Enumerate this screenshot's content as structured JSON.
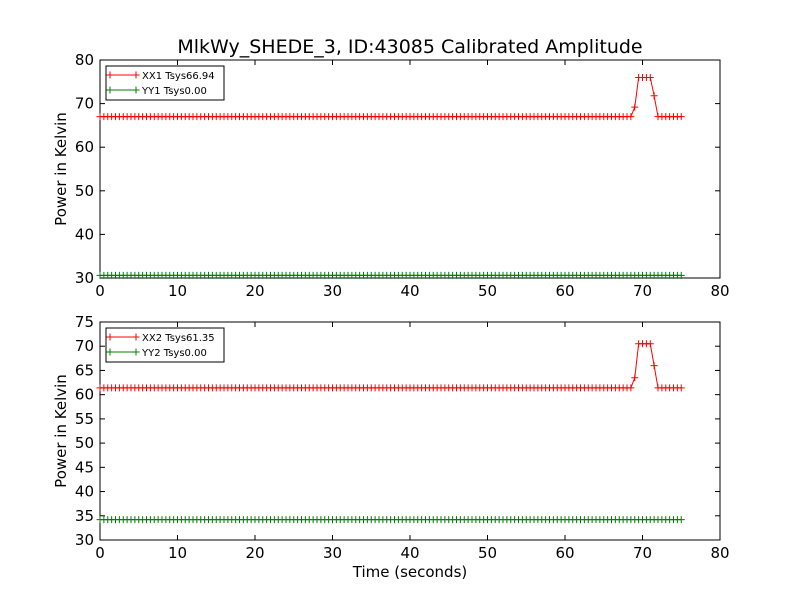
{
  "title": "MlkWy_SHEDE_3, ID:43085 Calibrated Amplitude",
  "xlabel": "Time (seconds)",
  "colors": {
    "xx": "#ff0000",
    "yy": "#008000",
    "axes": "#000000",
    "background": "#ffffff"
  },
  "chart_data": [
    {
      "type": "line",
      "ylabel": "Power in Kelvin",
      "xlim": [
        0,
        80
      ],
      "ylim": [
        30,
        80
      ],
      "xticks": [
        0,
        10,
        20,
        30,
        40,
        50,
        60,
        70,
        80
      ],
      "yticks": [
        30,
        40,
        50,
        60,
        70,
        80
      ],
      "xtick_labels": [
        "0",
        "10",
        "20",
        "30",
        "40",
        "50",
        "60",
        "70",
        "80"
      ],
      "ytick_labels": [
        "30",
        "40",
        "50",
        "60",
        "70",
        "80"
      ],
      "grid": false,
      "legend_position": "top-left",
      "marker": "+",
      "series": [
        {
          "name": "XX1 Tsys66.94",
          "color": "#ff0000",
          "x_start": 0,
          "x_end": 75,
          "step": 0.5,
          "baseline": 67.0,
          "overrides": [
            [
              69,
              69.2
            ],
            [
              69.5,
              76.0
            ],
            [
              70,
              76.0
            ],
            [
              70.5,
              76.0
            ],
            [
              71,
              76.0
            ],
            [
              71.5,
              71.8
            ],
            [
              72,
              67.0
            ]
          ]
        },
        {
          "name": "YY1 Tsys0.00",
          "color": "#008000",
          "x_start": 0,
          "x_end": 75,
          "step": 0.5,
          "baseline": 30.6,
          "overrides": []
        }
      ]
    },
    {
      "type": "line",
      "ylabel": "Power in Kelvin",
      "xlim": [
        0,
        80
      ],
      "ylim": [
        30,
        75
      ],
      "xticks": [
        0,
        10,
        20,
        30,
        40,
        50,
        60,
        70,
        80
      ],
      "yticks": [
        30,
        35,
        40,
        45,
        50,
        55,
        60,
        65,
        70,
        75
      ],
      "xtick_labels": [
        "0",
        "10",
        "20",
        "30",
        "40",
        "50",
        "60",
        "70",
        "80"
      ],
      "ytick_labels": [
        "30",
        "35",
        "40",
        "45",
        "50",
        "55",
        "60",
        "65",
        "70",
        "75"
      ],
      "grid": false,
      "legend_position": "top-left",
      "marker": "+",
      "series": [
        {
          "name": "XX2 Tsys61.35",
          "color": "#ff0000",
          "x_start": 0,
          "x_end": 75,
          "step": 0.5,
          "baseline": 61.4,
          "overrides": [
            [
              69,
              63.5
            ],
            [
              69.5,
              70.5
            ],
            [
              70,
              70.5
            ],
            [
              70.5,
              70.5
            ],
            [
              71,
              70.5
            ],
            [
              71.5,
              66.0
            ],
            [
              72,
              61.4
            ]
          ]
        },
        {
          "name": "YY2 Tsys0.00",
          "color": "#008000",
          "x_start": 0,
          "x_end": 75,
          "step": 0.5,
          "baseline": 34.2,
          "overrides": []
        }
      ]
    }
  ]
}
